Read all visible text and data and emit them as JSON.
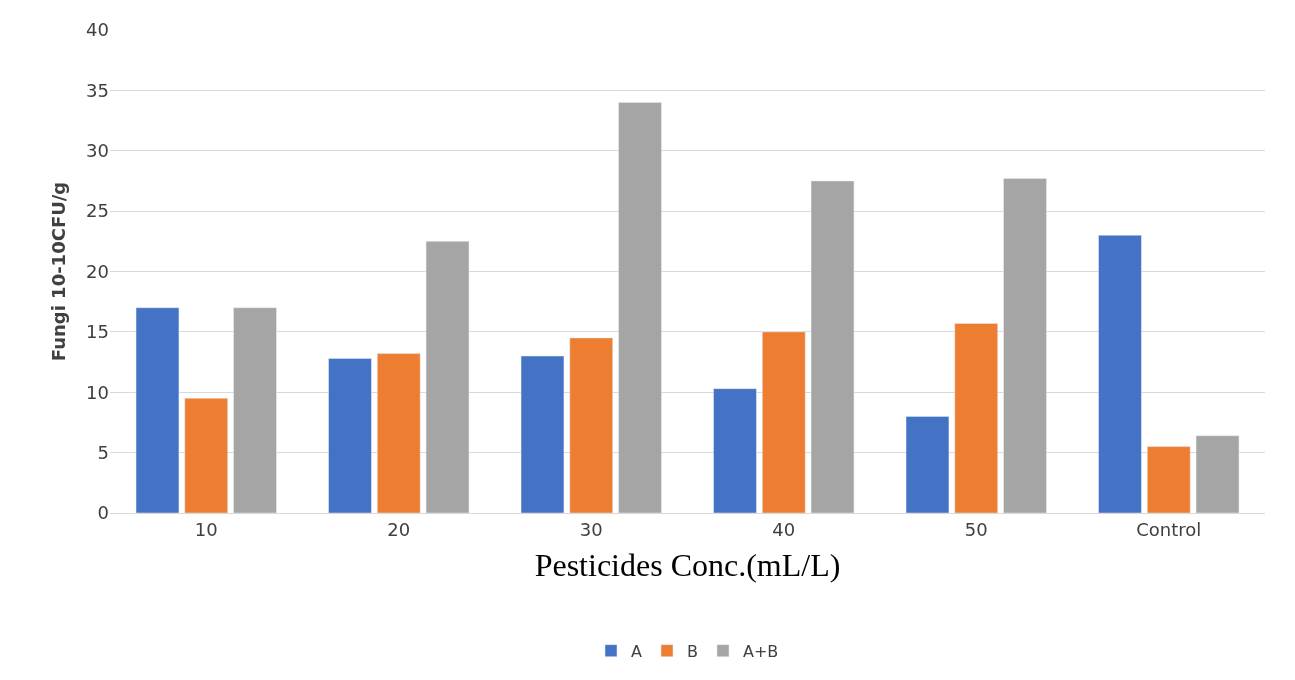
{
  "chart_data": {
    "type": "bar",
    "xlabel": "Pesticides Conc.(mL/L)",
    "ylabel": "Fungi 10-10CFU/g",
    "categories": [
      "10",
      "20",
      "30",
      "40",
      "50",
      "Control"
    ],
    "series": [
      {
        "name": "A",
        "color": "#4472c4",
        "values": [
          17,
          12.8,
          13,
          10.3,
          8,
          23
        ]
      },
      {
        "name": "B",
        "color": "#ed7d31",
        "values": [
          9.5,
          13.2,
          14.5,
          15,
          15.7,
          5.5
        ]
      },
      {
        "name": "A+B",
        "color": "#a5a5a5",
        "values": [
          17,
          22.5,
          34,
          27.5,
          27.7,
          6.4
        ]
      }
    ],
    "ylim": [
      0,
      40
    ],
    "yticks": [
      0,
      5,
      10,
      15,
      20,
      25,
      30,
      35,
      40
    ],
    "grid": "y",
    "legend": "bottom"
  }
}
